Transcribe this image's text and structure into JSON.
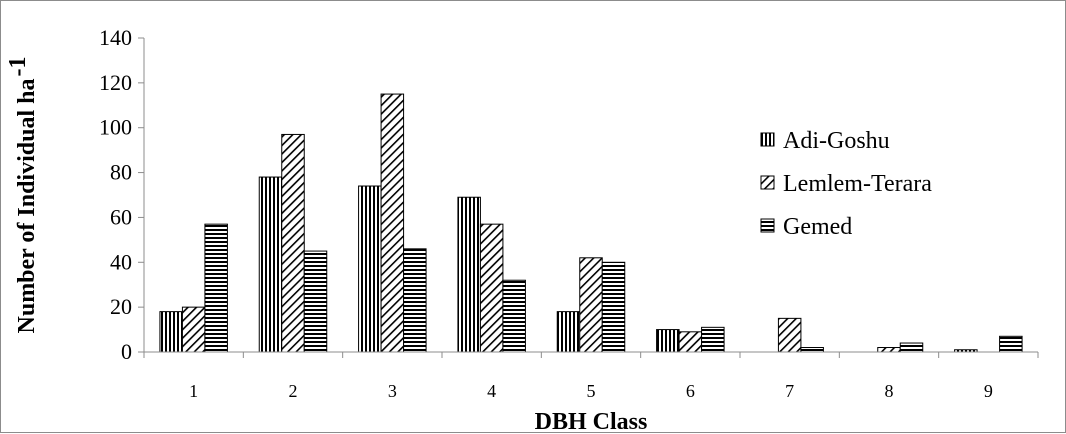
{
  "chart_data": {
    "type": "bar",
    "title": "",
    "xlabel": "DBH Class",
    "ylabel": "Number of Individual ha",
    "ylabel_superscript": "-1",
    "categories": [
      "1",
      "2",
      "3",
      "4",
      "5",
      "6",
      "7",
      "8",
      "9"
    ],
    "series": [
      {
        "name": "Adi-Goshu",
        "pattern": "vertical",
        "values": [
          18,
          78,
          74,
          69,
          18,
          10,
          0,
          0,
          1
        ]
      },
      {
        "name": "Lemlem-Terara",
        "pattern": "diagonal",
        "values": [
          20,
          97,
          115,
          57,
          42,
          9,
          15,
          2,
          0
        ]
      },
      {
        "name": "Gemed",
        "pattern": "horizontal",
        "values": [
          57,
          45,
          46,
          32,
          40,
          11,
          2,
          4,
          7
        ]
      }
    ],
    "ylim": [
      0,
      140
    ],
    "yticks": [
      "0",
      "20",
      "40",
      "60",
      "80",
      "100",
      "120",
      "140"
    ],
    "grid": false,
    "legend_position": "right"
  }
}
